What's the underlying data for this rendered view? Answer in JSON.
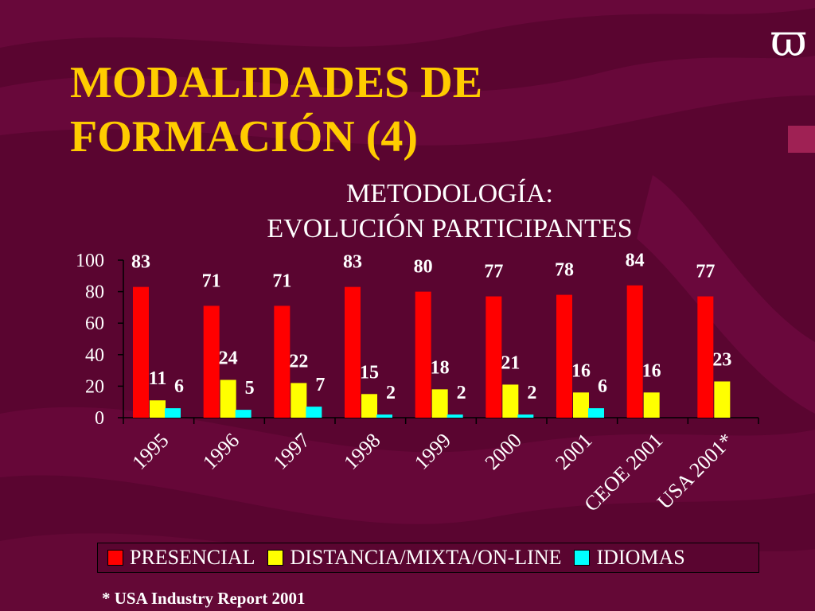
{
  "slide": {
    "title_line1": "MODALIDADES DE",
    "title_line2": "FORMACIÓN (4)",
    "logo_glyph": "ϖ",
    "footnote": "* USA Industry Report 2001",
    "colors": {
      "background": "#5a0530",
      "title": "#ffcc00"
    }
  },
  "chart_data": {
    "type": "bar",
    "title_line1": "METODOLOGÍA:",
    "title_line2": "EVOLUCIÓN PARTICIPANTES",
    "categories": [
      "1995",
      "1996",
      "1997",
      "1998",
      "1999",
      "2000",
      "2001",
      "CEOE 2001",
      "USA 2001*"
    ],
    "series": [
      {
        "name": "PRESENCIAL",
        "color": "#ff0000",
        "values": [
          83,
          71,
          71,
          83,
          80,
          77,
          78,
          84,
          77
        ]
      },
      {
        "name": "DISTANCIA/MIXTA/ON-LINE",
        "color": "#ffff00",
        "values": [
          11,
          24,
          22,
          15,
          18,
          21,
          16,
          16,
          23
        ]
      },
      {
        "name": "IDIOMAS",
        "color": "#00ffff",
        "values": [
          6,
          5,
          7,
          2,
          2,
          2,
          6,
          null,
          null
        ]
      }
    ],
    "ylim": [
      0,
      100
    ],
    "yticks": [
      0,
      20,
      40,
      60,
      80,
      100
    ],
    "grid": false,
    "legend_position": "bottom"
  }
}
